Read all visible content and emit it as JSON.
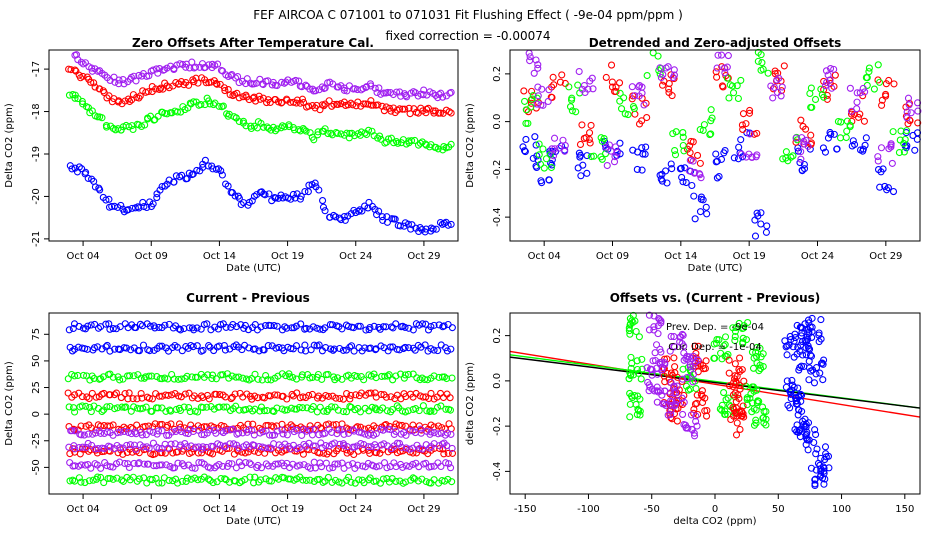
{
  "header": {
    "line1": "FEF   AIRCOA C   071001 to 071031   Fit Flushing Effect ( -9e-04 ppm/ppm )",
    "line2": "fixed correction = -0.00074"
  },
  "colors": {
    "blue": "#0000ff",
    "red": "#ff0000",
    "green": "#00ff00",
    "purple": "#a020f0",
    "black": "#000000"
  },
  "chart_data": [
    {
      "id": "p1",
      "type": "scatter",
      "title": "Zero Offsets After Temperature Cal.",
      "xlabel": "Date (UTC)",
      "ylabel": "Delta CO2 (ppm)",
      "xlim": [
        1.5,
        31.5
      ],
      "ylim": [
        -21.05,
        -16.55
      ],
      "xticks": [
        4,
        9,
        14,
        19,
        24,
        29
      ],
      "xtick_labels": [
        "Oct 04",
        "Oct 09",
        "Oct 14",
        "Oct 19",
        "Oct 24",
        "Oct 29"
      ],
      "yticks": [
        -21,
        -20,
        -19,
        -18,
        -17
      ],
      "ytick_labels": [
        "-21",
        "-20",
        "-19",
        "-18",
        "-17"
      ],
      "series": [
        {
          "name": "purple",
          "color": "purple",
          "x": [
            3,
            4,
            5,
            6,
            7,
            8,
            9,
            10,
            11,
            12,
            13,
            14,
            15,
            16,
            17,
            18,
            19,
            20,
            21,
            22,
            23,
            24,
            25,
            26,
            27,
            28,
            29,
            30,
            31
          ],
          "y": [
            -16.6,
            -16.8,
            -17.05,
            -17.25,
            -17.3,
            -17.2,
            -17.1,
            -17.0,
            -16.95,
            -16.9,
            -16.9,
            -16.95,
            -17.2,
            -17.3,
            -17.3,
            -17.35,
            -17.3,
            -17.35,
            -17.5,
            -17.35,
            -17.45,
            -17.45,
            -17.4,
            -17.55,
            -17.55,
            -17.6,
            -17.55,
            -17.65,
            -17.6
          ]
        },
        {
          "name": "red",
          "color": "red",
          "x": [
            3,
            4,
            5,
            6,
            7,
            8,
            9,
            10,
            11,
            12,
            13,
            14,
            15,
            16,
            17,
            18,
            19,
            20,
            21,
            22,
            23,
            24,
            25,
            26,
            27,
            28,
            29,
            30,
            31
          ],
          "y": [
            -17.0,
            -17.2,
            -17.45,
            -17.7,
            -17.75,
            -17.65,
            -17.5,
            -17.4,
            -17.35,
            -17.3,
            -17.25,
            -17.3,
            -17.6,
            -17.7,
            -17.7,
            -17.75,
            -17.7,
            -17.75,
            -17.95,
            -17.8,
            -17.85,
            -17.85,
            -17.8,
            -17.95,
            -17.95,
            -18.0,
            -17.95,
            -18.05,
            -18.0
          ]
        },
        {
          "name": "green",
          "color": "green",
          "x": [
            3,
            4,
            5,
            6,
            7,
            8,
            9,
            10,
            11,
            12,
            13,
            14,
            15,
            16,
            17,
            18,
            19,
            20,
            21,
            22,
            23,
            24,
            25,
            26,
            27,
            28,
            29,
            30,
            31
          ],
          "y": [
            -17.55,
            -17.8,
            -18.1,
            -18.35,
            -18.4,
            -18.35,
            -18.15,
            -18.05,
            -17.95,
            -17.85,
            -17.75,
            -17.85,
            -18.15,
            -18.35,
            -18.3,
            -18.4,
            -18.35,
            -18.4,
            -18.6,
            -18.45,
            -18.55,
            -18.55,
            -18.5,
            -18.7,
            -18.7,
            -18.75,
            -18.7,
            -18.85,
            -18.8
          ]
        },
        {
          "name": "blue",
          "color": "blue",
          "x": [
            3,
            4,
            5,
            6,
            7,
            8,
            9,
            10,
            11,
            12,
            13,
            14,
            15,
            16,
            17,
            18,
            19,
            20,
            21,
            22,
            23,
            24,
            25,
            26,
            27,
            28,
            29,
            30,
            31
          ],
          "y": [
            -19.3,
            -19.4,
            -19.75,
            -20.2,
            -20.3,
            -20.2,
            -20.2,
            -19.7,
            -19.55,
            -19.5,
            -19.2,
            -19.35,
            -20.0,
            -20.2,
            -19.95,
            -20.05,
            -20.0,
            -20.0,
            -19.65,
            -20.45,
            -20.55,
            -20.35,
            -20.2,
            -20.5,
            -20.6,
            -20.7,
            -20.8,
            -20.7,
            -20.6
          ]
        }
      ]
    },
    {
      "id": "p2",
      "type": "scatter",
      "title": "Detrended and Zero-adjusted Offsets",
      "xlabel": "Date (UTC)",
      "ylabel": "Delta CO2 (ppm)",
      "xlim": [
        1.5,
        31.5
      ],
      "ylim": [
        -0.5,
        0.3
      ],
      "xticks": [
        4,
        9,
        14,
        19,
        24,
        29
      ],
      "xtick_labels": [
        "Oct 04",
        "Oct 09",
        "Oct 14",
        "Oct 19",
        "Oct 24",
        "Oct 29"
      ],
      "yticks": [
        -0.4,
        -0.2,
        0.0,
        0.2
      ],
      "ytick_labels": [
        "-0.4",
        "-0.2",
        "0.0",
        "0.2"
      ],
      "series": [
        {
          "name": "blue",
          "color": "blue",
          "x": [
            3,
            4,
            5,
            7,
            9,
            11,
            13,
            14.5,
            15.5,
            17,
            18.5,
            20,
            23,
            25,
            27,
            29,
            31
          ],
          "y": [
            -0.12,
            -0.2,
            -0.15,
            -0.18,
            -0.1,
            -0.15,
            -0.2,
            -0.25,
            -0.35,
            -0.18,
            -0.1,
            -0.43,
            -0.15,
            -0.1,
            -0.12,
            -0.25,
            -0.1
          ]
        },
        {
          "name": "red",
          "color": "red",
          "x": [
            3,
            5,
            7,
            9,
            11,
            13,
            15,
            17,
            19,
            21,
            23,
            25,
            27,
            29,
            31
          ],
          "y": [
            0.08,
            0.15,
            -0.05,
            0.18,
            0.05,
            0.15,
            -0.12,
            0.2,
            0.0,
            0.18,
            -0.05,
            0.15,
            0.05,
            0.12,
            0.02
          ]
        },
        {
          "name": "green",
          "color": "green",
          "x": [
            3,
            4,
            6,
            8,
            10,
            12,
            14,
            16,
            18,
            20,
            22,
            24,
            26,
            28,
            30
          ],
          "y": [
            0.05,
            -0.15,
            0.1,
            -0.12,
            0.08,
            0.25,
            -0.1,
            0.0,
            0.15,
            0.26,
            -0.12,
            0.1,
            -0.05,
            0.18,
            -0.08
          ]
        },
        {
          "name": "purple",
          "color": "purple",
          "x": [
            3,
            4,
            5,
            7,
            9,
            11,
            13,
            15,
            17,
            19,
            21,
            23,
            25,
            27,
            29,
            31
          ],
          "y": [
            0.25,
            0.12,
            -0.12,
            0.15,
            -0.15,
            0.1,
            0.22,
            -0.2,
            0.25,
            -0.1,
            0.15,
            -0.12,
            0.18,
            0.1,
            -0.15,
            0.05
          ]
        }
      ]
    },
    {
      "id": "p3",
      "type": "scatter",
      "title": "Current - Previous",
      "xlabel": "Date (UTC)",
      "ylabel": "Delta CO2 (ppm)",
      "xlim": [
        1.5,
        31.5
      ],
      "ylim": [
        -75,
        95
      ],
      "xticks": [
        4,
        9,
        14,
        19,
        24,
        29
      ],
      "xtick_labels": [
        "Oct 04",
        "Oct 09",
        "Oct 14",
        "Oct 19",
        "Oct 24",
        "Oct 29"
      ],
      "yticks": [
        -50,
        -25,
        0,
        25,
        50,
        75
      ],
      "ytick_labels": [
        "-50",
        "-25",
        "0",
        "25",
        "50",
        "75"
      ],
      "series": [
        {
          "name": "blue-upper",
          "color": "blue",
          "x": [
            3,
            31
          ],
          "y": [
            82,
            82
          ]
        },
        {
          "name": "blue-lower",
          "color": "blue",
          "x": [
            3,
            31
          ],
          "y": [
            62,
            62
          ]
        },
        {
          "name": "green-upper",
          "color": "green",
          "x": [
            3,
            31
          ],
          "y": [
            35,
            35
          ]
        },
        {
          "name": "green-mid",
          "color": "green",
          "x": [
            3,
            31
          ],
          "y": [
            5,
            5
          ]
        },
        {
          "name": "green-lower",
          "color": "green",
          "x": [
            3,
            31
          ],
          "y": [
            -62,
            -62
          ]
        },
        {
          "name": "red-upper",
          "color": "red",
          "x": [
            3,
            31
          ],
          "y": [
            17,
            17
          ]
        },
        {
          "name": "red-mid",
          "color": "red",
          "x": [
            3,
            31
          ],
          "y": [
            -12,
            -12
          ]
        },
        {
          "name": "red-lower",
          "color": "red",
          "x": [
            3,
            31
          ],
          "y": [
            -35,
            -35
          ]
        },
        {
          "name": "purple-upper",
          "color": "purple",
          "x": [
            3,
            31
          ],
          "y": [
            -17,
            -17
          ]
        },
        {
          "name": "purple-mid",
          "color": "purple",
          "x": [
            3,
            31
          ],
          "y": [
            -30,
            -30
          ]
        },
        {
          "name": "purple-lower",
          "color": "purple",
          "x": [
            3,
            31
          ],
          "y": [
            -48,
            -48
          ]
        }
      ]
    },
    {
      "id": "p4",
      "type": "scatter",
      "title": "Offsets vs. (Current - Previous)",
      "xlabel": "delta CO2 (ppm)",
      "ylabel": "delta CO2 (ppm)",
      "xlim": [
        -162,
        162
      ],
      "ylim": [
        -0.5,
        0.3
      ],
      "xticks": [
        -150,
        -100,
        -50,
        0,
        50,
        100,
        150
      ],
      "xtick_labels": [
        "-150",
        "-100",
        "-50",
        "0",
        "50",
        "100",
        "150"
      ],
      "yticks": [
        -0.4,
        -0.2,
        0.0,
        0.2
      ],
      "ytick_labels": [
        "-0.4",
        "-0.2",
        "0.0",
        "0.2"
      ],
      "annotations": [
        "Prev. Dep. = -9e-04",
        "Cur. Dep. = -1e-04"
      ],
      "lines": [
        {
          "name": "fit-red",
          "color": "red",
          "x": [
            -162,
            162
          ],
          "y": [
            0.13,
            -0.16
          ]
        },
        {
          "name": "fit-green",
          "color": "green",
          "x": [
            -162,
            162
          ],
          "y": [
            0.115,
            -0.12
          ]
        },
        {
          "name": "fit-black",
          "color": "black",
          "x": [
            -162,
            162
          ],
          "y": [
            0.105,
            -0.12
          ]
        }
      ],
      "series": [
        {
          "name": "blue",
          "color": "blue",
          "x": [
            60,
            65,
            70,
            75,
            80,
            85,
            62,
            72,
            82,
            68,
            78
          ],
          "y": [
            0.15,
            -0.1,
            0.2,
            -0.25,
            0.05,
            -0.35,
            -0.05,
            0.1,
            -0.42,
            -0.2,
            0.22
          ]
        },
        {
          "name": "green",
          "color": "green",
          "x": [
            -62,
            -62,
            -62,
            5,
            10,
            20,
            30,
            35,
            35,
            -20
          ],
          "y": [
            0.25,
            -0.1,
            0.05,
            0.15,
            -0.1,
            0.2,
            -0.05,
            0.1,
            -0.15,
            0.0
          ]
        },
        {
          "name": "red",
          "color": "red",
          "x": [
            -35,
            -30,
            -12,
            -12,
            17,
            17,
            17,
            -35
          ],
          "y": [
            0.05,
            -0.05,
            0.1,
            -0.1,
            0.05,
            -0.08,
            -0.18,
            -0.12
          ]
        },
        {
          "name": "purple",
          "color": "purple",
          "x": [
            -48,
            -40,
            -30,
            -20,
            -17,
            -48,
            -30,
            -45
          ],
          "y": [
            0.25,
            -0.1,
            0.15,
            -0.2,
            0.05,
            0.0,
            -0.05,
            0.1
          ]
        }
      ]
    }
  ]
}
